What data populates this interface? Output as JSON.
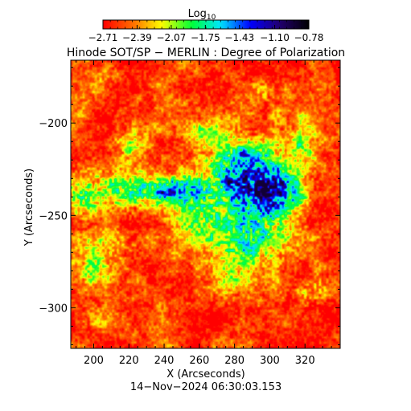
{
  "chart_data": {
    "type": "heatmap",
    "title": "Hinode SOT/SP − MERLIN : Degree of Polarization",
    "xlabel": "X (Arcseconds)",
    "ylabel": "Y (Arcseconds)",
    "xlim": [
      187,
      340
    ],
    "ylim": [
      -322,
      -166
    ],
    "x_ticks": [
      200,
      220,
      240,
      260,
      280,
      300,
      320
    ],
    "y_ticks": [
      -200,
      -250,
      -300
    ],
    "x_tick_labels": [
      "200",
      "220",
      "240",
      "260",
      "280",
      "300",
      "320"
    ],
    "y_tick_labels": [
      "−200",
      "−250",
      "−300"
    ],
    "colorbar": {
      "title_base": "Log",
      "title_sub": "10",
      "range": [
        -2.71,
        -0.78
      ],
      "tick_values": [
        -2.71,
        -2.39,
        -2.07,
        -1.75,
        -1.43,
        -1.1,
        -0.78
      ],
      "tick_labels": [
        "−2.71",
        "−2.39",
        "−2.07",
        "−1.75",
        "−1.43",
        "−1.10",
        "−0.78"
      ],
      "colors": [
        "#ff0000",
        "#ff6a00",
        "#ffff00",
        "#00ff33",
        "#00e5ff",
        "#0000ff",
        "#22006e",
        "#000000"
      ]
    },
    "timestamp": "14−Nov−2024 06:30:03.153"
  }
}
